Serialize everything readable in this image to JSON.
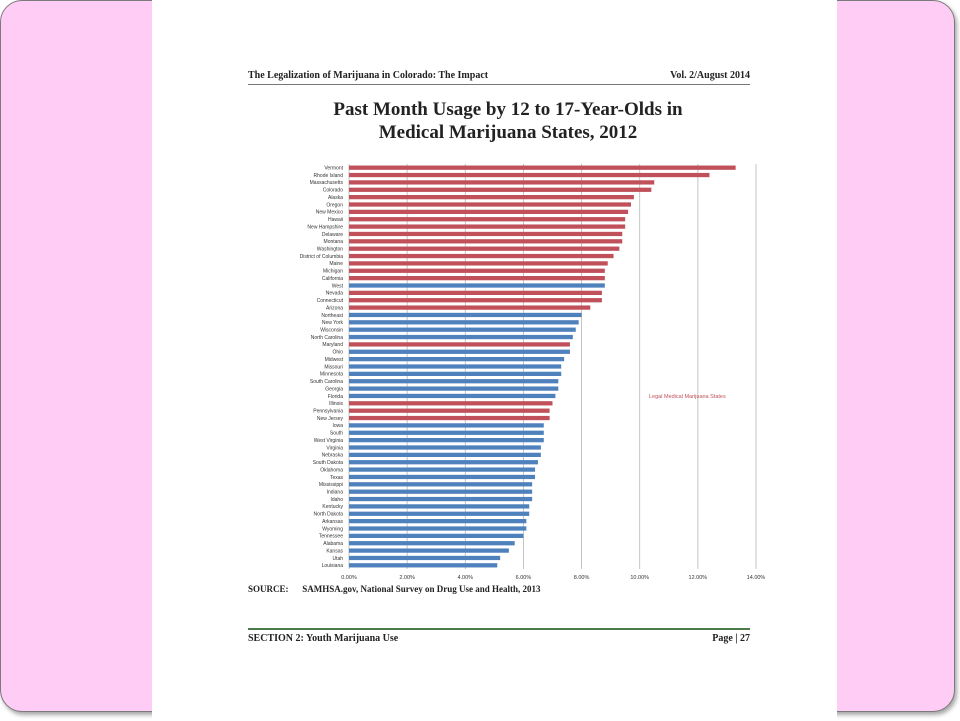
{
  "page": {
    "header_left": "The Legalization of Marijuana in Colorado: The Impact",
    "header_right": "Vol. 2/August 2014",
    "title_line1": "Past Month Usage by 12 to 17-Year-Olds in",
    "title_line2": "Medical Marijuana States, 2012",
    "source_label": "SOURCE:",
    "source_text": "SAMHSA.gov, National Survey on Drug Use and Health, 2013",
    "footer_left": "SECTION 2: Youth Marijuana Use",
    "footer_right": "Page | 27"
  },
  "colors": {
    "medical": "#c0505a",
    "other": "#4f81bd",
    "slide_bg": "#ffccf5",
    "grid": "#b7b7b7"
  },
  "chart_data": {
    "type": "bar",
    "orientation": "horizontal",
    "title": "Past Month Usage by 12 to 17-Year-Olds in Medical Marijuana States, 2012",
    "annotation": "Legal Medical Marijuana States",
    "xlim": [
      0,
      14
    ],
    "xticks": [
      "0.00%",
      "2.00%",
      "4.00%",
      "6.00%",
      "8.00%",
      "10.00%",
      "12.00%",
      "14.00%"
    ],
    "grid": true,
    "categories": [
      "Vermont",
      "Rhode Island",
      "Massachusetts",
      "Colorado",
      "Alaska",
      "Oregon",
      "New Mexico",
      "Hawaii",
      "New Hampshire",
      "Delaware",
      "Montana",
      "Washington",
      "District of Columbia",
      "Maine",
      "Michigan",
      "California",
      "West",
      "Nevada",
      "Connecticut",
      "Arizona",
      "Northeast",
      "New York",
      "Wisconsin",
      "North Carolina",
      "Maryland",
      "Ohio",
      "Midwest",
      "Missouri",
      "Minnesota",
      "South Carolina",
      "Georgia",
      "Florida",
      "Illinois",
      "Pennsylvania",
      "New Jersey",
      "Iowa",
      "South",
      "West Virginia",
      "Virginia",
      "Nebraska",
      "South Dakota",
      "Oklahoma",
      "Texas",
      "Mississippi",
      "Indiana",
      "Idaho",
      "Kentucky",
      "North Dakota",
      "Arkansas",
      "Wyoming",
      "Tennessee",
      "Alabama",
      "Kansas",
      "Utah",
      "Louisiana"
    ],
    "values": [
      13.3,
      12.4,
      10.5,
      10.4,
      9.8,
      9.7,
      9.6,
      9.5,
      9.5,
      9.4,
      9.4,
      9.3,
      9.1,
      8.9,
      8.8,
      8.8,
      8.8,
      8.7,
      8.7,
      8.3,
      8.0,
      7.9,
      7.8,
      7.7,
      7.6,
      7.6,
      7.4,
      7.3,
      7.3,
      7.2,
      7.2,
      7.1,
      7.0,
      6.9,
      6.9,
      6.7,
      6.7,
      6.7,
      6.6,
      6.6,
      6.5,
      6.4,
      6.4,
      6.3,
      6.3,
      6.3,
      6.2,
      6.2,
      6.1,
      6.1,
      6.0,
      5.7,
      5.5,
      5.2,
      5.1
    ],
    "medical": [
      true,
      true,
      true,
      true,
      true,
      true,
      true,
      true,
      true,
      true,
      true,
      true,
      true,
      true,
      true,
      true,
      false,
      true,
      true,
      true,
      false,
      false,
      false,
      false,
      true,
      false,
      false,
      false,
      false,
      false,
      false,
      false,
      true,
      true,
      true,
      false,
      false,
      false,
      false,
      false,
      false,
      false,
      false,
      false,
      false,
      false,
      false,
      false,
      false,
      false,
      false,
      false,
      false,
      false,
      false
    ]
  }
}
